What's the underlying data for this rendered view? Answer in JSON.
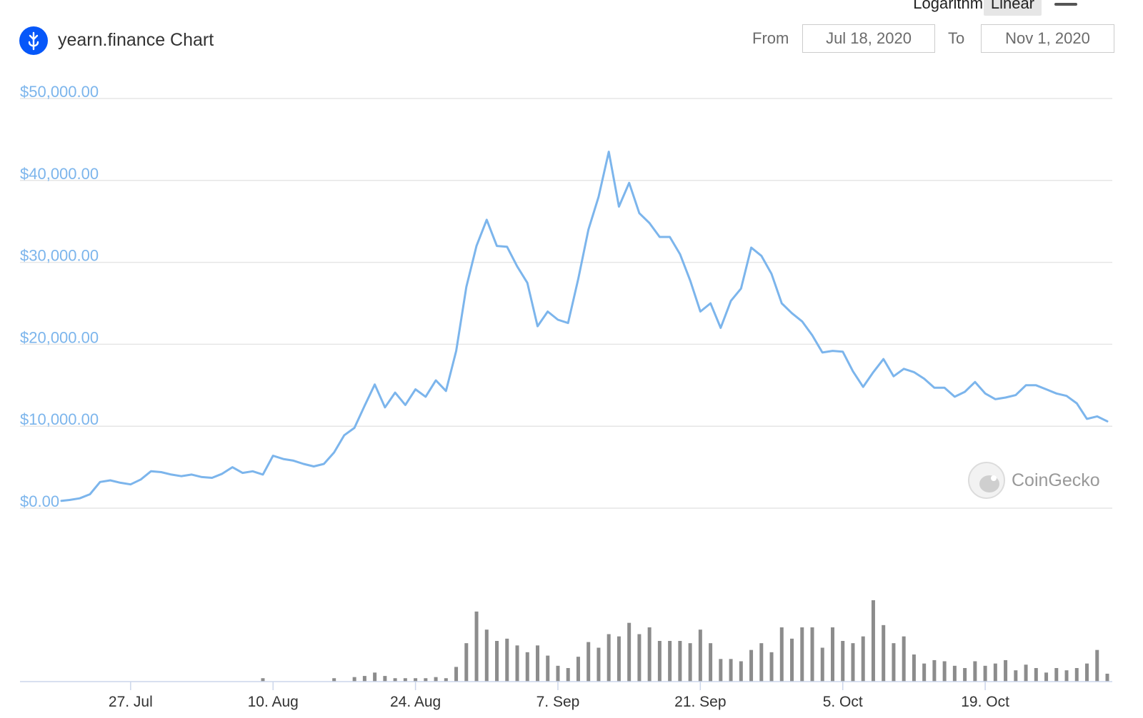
{
  "header": {
    "title": "yearn.finance Chart",
    "logo_icon": "yearn-logo-icon",
    "scale_options": [
      "Logarithmic",
      "Linear"
    ],
    "selected_scale": "Linear",
    "menu_icon": "hamburger-menu-icon",
    "from_label": "From",
    "from_value": "Jul 18, 2020",
    "to_label": "To",
    "to_value": "Nov 1, 2020"
  },
  "credit": "CoinGecko",
  "colors": {
    "price_line": "#7cb5ec",
    "volume_bars": "#8c8c8c",
    "grid": "#e6e6e6",
    "logo": "#0657f9"
  },
  "chart_data": [
    {
      "type": "line",
      "title": "yearn.finance Chart",
      "x_start": "2020-07-18",
      "x_end": "2020-11-01",
      "ylim": [
        0,
        50000
      ],
      "yticks": [
        0,
        10000,
        20000,
        30000,
        40000,
        50000
      ],
      "ytick_labels": [
        "$0.00",
        "$10,000.00",
        "$20,000.00",
        "$30,000.00",
        "$40,000.00",
        "$50,000.00"
      ],
      "grid": true,
      "series": [
        {
          "values": [
            [
              19.2,
              900
            ],
            [
              20.0,
              1000
            ],
            [
              21.0,
              1200
            ],
            [
              22.0,
              1700
            ],
            [
              23.0,
              3200
            ],
            [
              24.0,
              3400
            ],
            [
              25.0,
              3100
            ],
            [
              26.0,
              2900
            ],
            [
              27.0,
              3500
            ],
            [
              28.0,
              4500
            ],
            [
              29.0,
              4400
            ],
            [
              30.0,
              4100
            ],
            [
              31.0,
              3900
            ],
            [
              32.0,
              4100
            ],
            [
              33.0,
              3800
            ],
            [
              34.0,
              3700
            ],
            [
              35.0,
              4200
            ],
            [
              36.0,
              5000
            ],
            [
              37.0,
              4300
            ],
            [
              38.0,
              4500
            ],
            [
              39.0,
              4100
            ],
            [
              40.0,
              6400
            ],
            [
              41.0,
              6000
            ],
            [
              42.0,
              5800
            ],
            [
              43.0,
              5400
            ],
            [
              44.0,
              5100
            ],
            [
              45.0,
              5400
            ],
            [
              46.0,
              6800
            ],
            [
              47.0,
              8900
            ],
            [
              48.0,
              9800
            ],
            [
              49.0,
              12500
            ],
            [
              50.0,
              15100
            ],
            [
              51.0,
              12300
            ],
            [
              52.0,
              14100
            ],
            [
              53.0,
              12600
            ],
            [
              54.0,
              14500
            ],
            [
              55.0,
              13600
            ],
            [
              56.0,
              15600
            ],
            [
              57.0,
              14300
            ],
            [
              58.0,
              19200
            ],
            [
              59.0,
              27000
            ],
            [
              60.0,
              32000
            ],
            [
              61.0,
              35200
            ],
            [
              62.0,
              32000
            ],
            [
              63.0,
              31900
            ],
            [
              64.0,
              29500
            ],
            [
              65.0,
              27500
            ],
            [
              66.0,
              22200
            ],
            [
              67.0,
              24000
            ],
            [
              68.0,
              23000
            ],
            [
              69.0,
              22600
            ],
            [
              70.0,
              28000
            ],
            [
              71.0,
              34000
            ],
            [
              72.0,
              38000
            ],
            [
              73.0,
              43500
            ],
            [
              74.0,
              36800
            ],
            [
              75.0,
              39700
            ],
            [
              76.0,
              36000
            ],
            [
              77.0,
              34800
            ],
            [
              78.0,
              33100
            ],
            [
              79.0,
              33100
            ],
            [
              80.0,
              31000
            ],
            [
              81.0,
              27800
            ],
            [
              82.0,
              24000
            ],
            [
              83.0,
              25000
            ],
            [
              84.0,
              22000
            ],
            [
              85.0,
              25300
            ],
            [
              86.0,
              26800
            ],
            [
              87.0,
              31800
            ],
            [
              88.0,
              30800
            ],
            [
              89.0,
              28600
            ],
            [
              90.0,
              25000
            ],
            [
              91.0,
              23800
            ],
            [
              92.0,
              22800
            ],
            [
              93.0,
              21100
            ],
            [
              94.0,
              19000
            ],
            [
              95.0,
              19200
            ],
            [
              96.0,
              19100
            ],
            [
              97.0,
              16700
            ],
            [
              98.0,
              14800
            ],
            [
              99.0,
              16600
            ],
            [
              100.0,
              18200
            ],
            [
              101.0,
              16100
            ],
            [
              102.0,
              17000
            ],
            [
              103.0,
              16600
            ],
            [
              104.0,
              15800
            ],
            [
              105.0,
              14700
            ],
            [
              106.0,
              14700
            ],
            [
              107.0,
              13600
            ],
            [
              108.0,
              14200
            ],
            [
              109.0,
              15400
            ],
            [
              110.0,
              14000
            ],
            [
              111.0,
              13300
            ],
            [
              112.0,
              13500
            ],
            [
              113.0,
              13800
            ],
            [
              114.0,
              15000
            ],
            [
              115.0,
              15000
            ],
            [
              116.0,
              14500
            ],
            [
              117.0,
              14000
            ],
            [
              118.0,
              13700
            ],
            [
              119.0,
              12800
            ],
            [
              120.0,
              10900
            ],
            [
              121.0,
              11200
            ],
            [
              122.0,
              10600
            ]
          ]
        }
      ]
    },
    {
      "type": "bar",
      "title": "",
      "xticks": [
        26,
        40,
        54,
        68,
        82,
        96,
        110
      ],
      "xtick_labels": [
        "27. Jul",
        "10. Aug",
        "24. Aug",
        "7. Sep",
        "21. Sep",
        "5. Oct",
        "19. Oct"
      ],
      "grid": false,
      "values": [
        [
          39,
          3
        ],
        [
          46,
          3
        ],
        [
          48,
          4
        ],
        [
          49,
          5
        ],
        [
          50,
          8
        ],
        [
          51,
          5
        ],
        [
          52,
          3
        ],
        [
          53,
          3
        ],
        [
          54,
          3
        ],
        [
          55,
          3
        ],
        [
          56,
          4
        ],
        [
          57,
          3
        ],
        [
          58,
          13
        ],
        [
          59,
          34
        ],
        [
          60,
          62
        ],
        [
          61,
          46
        ],
        [
          62,
          36
        ],
        [
          63,
          38
        ],
        [
          64,
          32
        ],
        [
          65,
          26
        ],
        [
          66,
          32
        ],
        [
          67,
          23
        ],
        [
          68,
          14
        ],
        [
          69,
          12
        ],
        [
          70,
          22
        ],
        [
          71,
          35
        ],
        [
          72,
          30
        ],
        [
          73,
          42
        ],
        [
          74,
          40
        ],
        [
          75,
          52
        ],
        [
          76,
          42
        ],
        [
          77,
          48
        ],
        [
          78,
          36
        ],
        [
          79,
          36
        ],
        [
          80,
          36
        ],
        [
          81,
          34
        ],
        [
          82,
          46
        ],
        [
          83,
          34
        ],
        [
          84,
          20
        ],
        [
          85,
          20
        ],
        [
          86,
          18
        ],
        [
          87,
          28
        ],
        [
          88,
          34
        ],
        [
          89,
          26
        ],
        [
          90,
          48
        ],
        [
          91,
          38
        ],
        [
          92,
          48
        ],
        [
          93,
          48
        ],
        [
          94,
          30
        ],
        [
          95,
          48
        ],
        [
          96,
          36
        ],
        [
          97,
          34
        ],
        [
          98,
          40
        ],
        [
          99,
          72
        ],
        [
          100,
          50
        ],
        [
          101,
          34
        ],
        [
          102,
          40
        ],
        [
          103,
          24
        ],
        [
          104,
          16
        ],
        [
          105,
          19
        ],
        [
          106,
          18
        ],
        [
          107,
          14
        ],
        [
          108,
          12
        ],
        [
          109,
          18
        ],
        [
          110,
          14
        ],
        [
          111,
          16
        ],
        [
          112,
          19
        ],
        [
          113,
          10
        ],
        [
          114,
          15
        ],
        [
          115,
          12
        ],
        [
          116,
          8
        ],
        [
          117,
          12
        ],
        [
          118,
          10
        ],
        [
          119,
          12
        ],
        [
          120,
          16
        ],
        [
          121,
          28
        ],
        [
          122,
          7
        ]
      ]
    }
  ]
}
